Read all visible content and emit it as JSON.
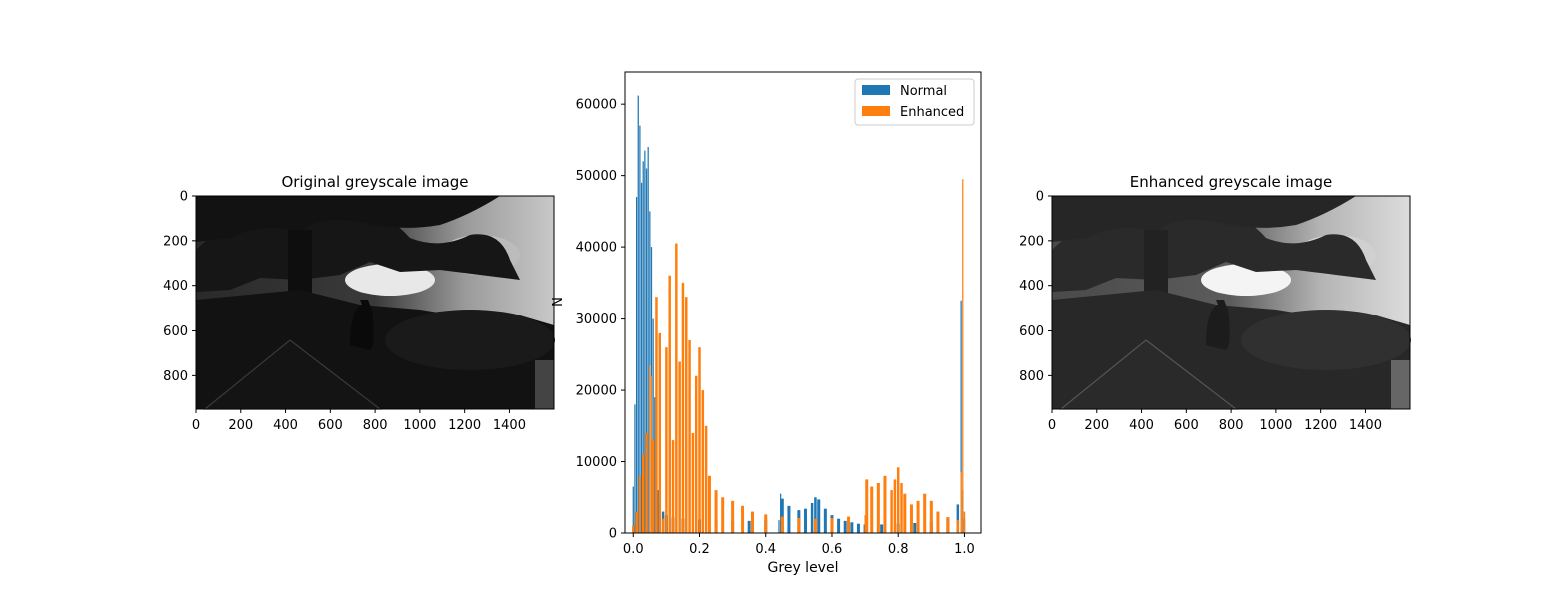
{
  "chart_data": [
    {
      "type": "image",
      "title": "Original greyscale image",
      "x_ticks": [
        "0",
        "200",
        "400",
        "600",
        "800",
        "1000",
        "1200",
        "1400"
      ],
      "y_ticks": [
        "0",
        "200",
        "400",
        "600",
        "800"
      ],
      "xlim": [
        0,
        1599
      ],
      "ylim": [
        950,
        0
      ]
    },
    {
      "type": "bar",
      "xlabel": "Grey level",
      "ylabel": "N",
      "xlim": [
        -0.025,
        1.05
      ],
      "ylim": [
        0,
        64500
      ],
      "x_ticks": [
        "0.0",
        "0.2",
        "0.4",
        "0.6",
        "0.8",
        "1.0"
      ],
      "y_ticks": [
        "0",
        "10000",
        "20000",
        "30000",
        "40000",
        "50000",
        "60000"
      ],
      "legend": {
        "position": "top-right"
      },
      "colors": {
        "Normal": "#1f77b4",
        "Enhanced": "#ff7f0e"
      },
      "series": [
        {
          "name": "Normal",
          "x": [
            0.0,
            0.005,
            0.01,
            0.015,
            0.02,
            0.025,
            0.03,
            0.035,
            0.04,
            0.045,
            0.05,
            0.055,
            0.06,
            0.065,
            0.07,
            0.075,
            0.08,
            0.09,
            0.1,
            0.12,
            0.15,
            0.2,
            0.25,
            0.3,
            0.35,
            0.4,
            0.44,
            0.445,
            0.45,
            0.47,
            0.5,
            0.52,
            0.54,
            0.55,
            0.56,
            0.58,
            0.6,
            0.62,
            0.64,
            0.66,
            0.68,
            0.7,
            0.75,
            0.8,
            0.85,
            0.9,
            0.95,
            0.98,
            0.99,
            0.995,
            1.0
          ],
          "y": [
            6500,
            18000,
            47000,
            61200,
            57000,
            49000,
            52000,
            53500,
            51000,
            54000,
            45000,
            40000,
            30000,
            19000,
            10000,
            6000,
            4000,
            3000,
            2500,
            2200,
            2000,
            1900,
            1800,
            1700,
            1700,
            1800,
            1800,
            5500,
            4800,
            3800,
            3200,
            3400,
            4200,
            5000,
            4700,
            3400,
            2500,
            2000,
            1700,
            1500,
            1300,
            1200,
            1200,
            1300,
            1400,
            1600,
            2200,
            4000,
            32500,
            6000,
            2000
          ]
        },
        {
          "name": "Enhanced",
          "x": [
            0.0,
            0.01,
            0.02,
            0.03,
            0.04,
            0.05,
            0.055,
            0.06,
            0.07,
            0.08,
            0.09,
            0.1,
            0.11,
            0.12,
            0.13,
            0.14,
            0.15,
            0.16,
            0.17,
            0.18,
            0.19,
            0.2,
            0.21,
            0.22,
            0.23,
            0.25,
            0.27,
            0.3,
            0.33,
            0.36,
            0.4,
            0.45,
            0.5,
            0.55,
            0.6,
            0.65,
            0.7,
            0.705,
            0.72,
            0.74,
            0.76,
            0.78,
            0.79,
            0.8,
            0.81,
            0.82,
            0.84,
            0.86,
            0.88,
            0.9,
            0.92,
            0.95,
            0.98,
            0.99,
            0.995,
            1.0
          ],
          "y": [
            1000,
            3000,
            8000,
            11000,
            14000,
            23500,
            22000,
            13000,
            33000,
            28000,
            2000,
            26000,
            36000,
            13000,
            40500,
            24000,
            35000,
            33000,
            27000,
            14000,
            22000,
            26000,
            20000,
            15000,
            8000,
            6000,
            5000,
            4500,
            3800,
            3000,
            2600,
            2300,
            2100,
            2000,
            2100,
            2300,
            2500,
            7500,
            6500,
            7000,
            8000,
            6000,
            7500,
            9200,
            7000,
            5500,
            4000,
            4500,
            5500,
            4500,
            3000,
            2200,
            1800,
            8500,
            49500,
            3000
          ]
        }
      ]
    },
    {
      "type": "image",
      "title": "Enhanced greyscale image",
      "x_ticks": [
        "0",
        "200",
        "400",
        "600",
        "800",
        "1000",
        "1200",
        "1400"
      ],
      "y_ticks": [
        "0",
        "200",
        "400",
        "600",
        "800"
      ],
      "xlim": [
        0,
        1599
      ],
      "ylim": [
        950,
        0
      ]
    }
  ]
}
